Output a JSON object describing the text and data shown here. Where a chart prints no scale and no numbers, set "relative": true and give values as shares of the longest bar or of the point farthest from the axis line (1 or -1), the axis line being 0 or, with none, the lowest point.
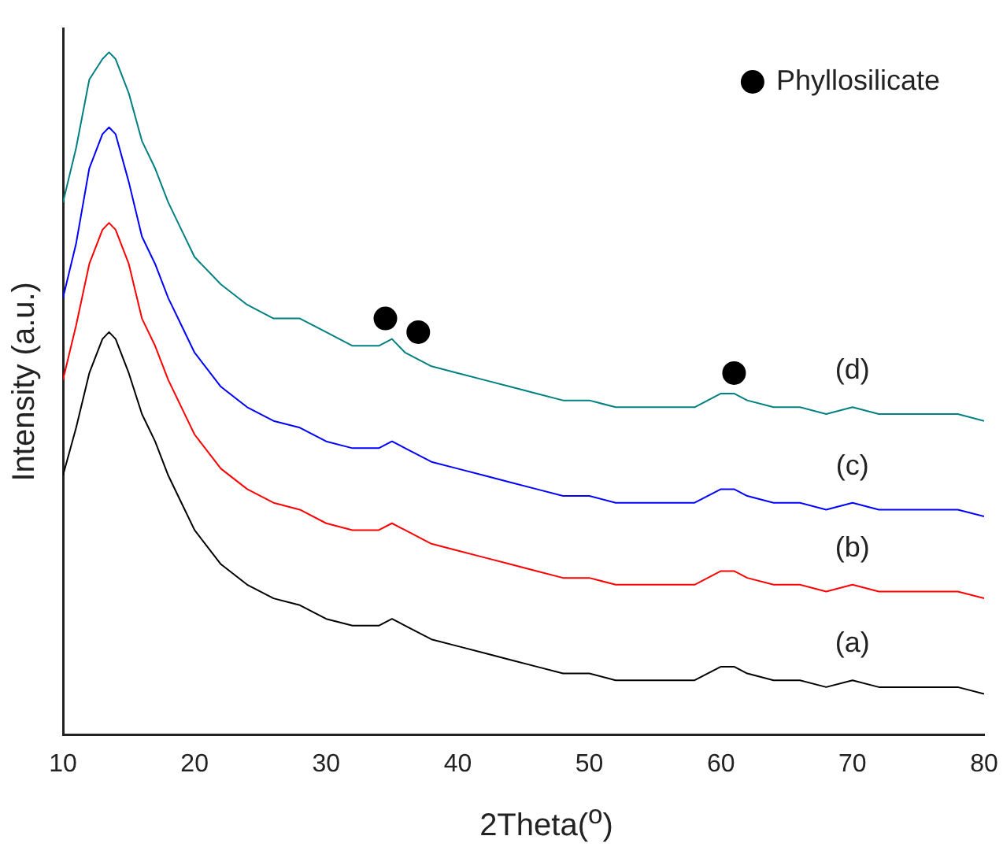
{
  "chart_data": {
    "type": "line",
    "xlabel": "2Theta($^{o}$)",
    "ylabel": "Intensity (a.u.)",
    "relative": true,
    "xlim": [
      10,
      80
    ],
    "xticks": [
      10,
      20,
      30,
      40,
      50,
      60,
      70,
      80
    ],
    "grid": false,
    "legend": "top right",
    "marker": "none",
    "x": [
      10,
      11,
      12,
      13,
      13.5,
      14,
      15,
      16,
      17,
      18,
      19,
      20,
      22,
      24,
      26,
      28,
      30,
      32,
      34,
      35,
      36,
      38,
      40,
      42,
      44,
      46,
      48,
      50,
      52,
      54,
      56,
      58,
      60,
      61,
      62,
      64,
      66,
      68,
      70,
      72,
      74,
      76,
      78,
      80
    ],
    "series": [
      {
        "name": "(a)",
        "color": "#000000",
        "values": [
          0.38,
          0.45,
          0.53,
          0.58,
          0.59,
          0.58,
          0.53,
          0.47,
          0.43,
          0.38,
          0.34,
          0.3,
          0.25,
          0.22,
          0.2,
          0.19,
          0.17,
          0.16,
          0.16,
          0.17,
          0.16,
          0.14,
          0.13,
          0.12,
          0.11,
          0.1,
          0.09,
          0.09,
          0.08,
          0.08,
          0.08,
          0.08,
          0.1,
          0.1,
          0.09,
          0.08,
          0.08,
          0.07,
          0.08,
          0.07,
          0.07,
          0.07,
          0.07,
          0.06
        ]
      },
      {
        "name": "(b)",
        "color": "#ff0000",
        "values": [
          0.52,
          0.6,
          0.69,
          0.74,
          0.75,
          0.74,
          0.69,
          0.61,
          0.57,
          0.52,
          0.48,
          0.44,
          0.39,
          0.36,
          0.34,
          0.33,
          0.31,
          0.3,
          0.3,
          0.31,
          0.3,
          0.28,
          0.27,
          0.26,
          0.25,
          0.24,
          0.23,
          0.23,
          0.22,
          0.22,
          0.22,
          0.22,
          0.24,
          0.24,
          0.23,
          0.22,
          0.22,
          0.21,
          0.22,
          0.21,
          0.21,
          0.21,
          0.21,
          0.2
        ]
      },
      {
        "name": "(c)",
        "color": "#0000ff",
        "values": [
          0.64,
          0.72,
          0.83,
          0.88,
          0.89,
          0.88,
          0.81,
          0.73,
          0.69,
          0.64,
          0.6,
          0.56,
          0.51,
          0.48,
          0.46,
          0.45,
          0.43,
          0.42,
          0.42,
          0.43,
          0.42,
          0.4,
          0.39,
          0.38,
          0.37,
          0.36,
          0.35,
          0.35,
          0.34,
          0.34,
          0.34,
          0.34,
          0.36,
          0.36,
          0.35,
          0.34,
          0.34,
          0.33,
          0.34,
          0.33,
          0.33,
          0.33,
          0.33,
          0.32
        ]
      },
      {
        "name": "(d)",
        "color": "#008080",
        "values": [
          0.78,
          0.86,
          0.96,
          0.99,
          1.0,
          0.99,
          0.94,
          0.87,
          0.83,
          0.78,
          0.74,
          0.7,
          0.66,
          0.63,
          0.61,
          0.61,
          0.59,
          0.57,
          0.57,
          0.58,
          0.56,
          0.54,
          0.53,
          0.52,
          0.51,
          0.5,
          0.49,
          0.49,
          0.48,
          0.48,
          0.48,
          0.48,
          0.5,
          0.5,
          0.49,
          0.48,
          0.48,
          0.47,
          0.48,
          0.47,
          0.47,
          0.47,
          0.47,
          0.46
        ]
      },
      {
        "name": "Phyllosilicate",
        "type": "scatter",
        "marker": "circle",
        "color": "#000000",
        "x": [
          34.5,
          37,
          61
        ],
        "values": [
          0.61,
          0.59,
          0.53
        ]
      }
    ]
  }
}
